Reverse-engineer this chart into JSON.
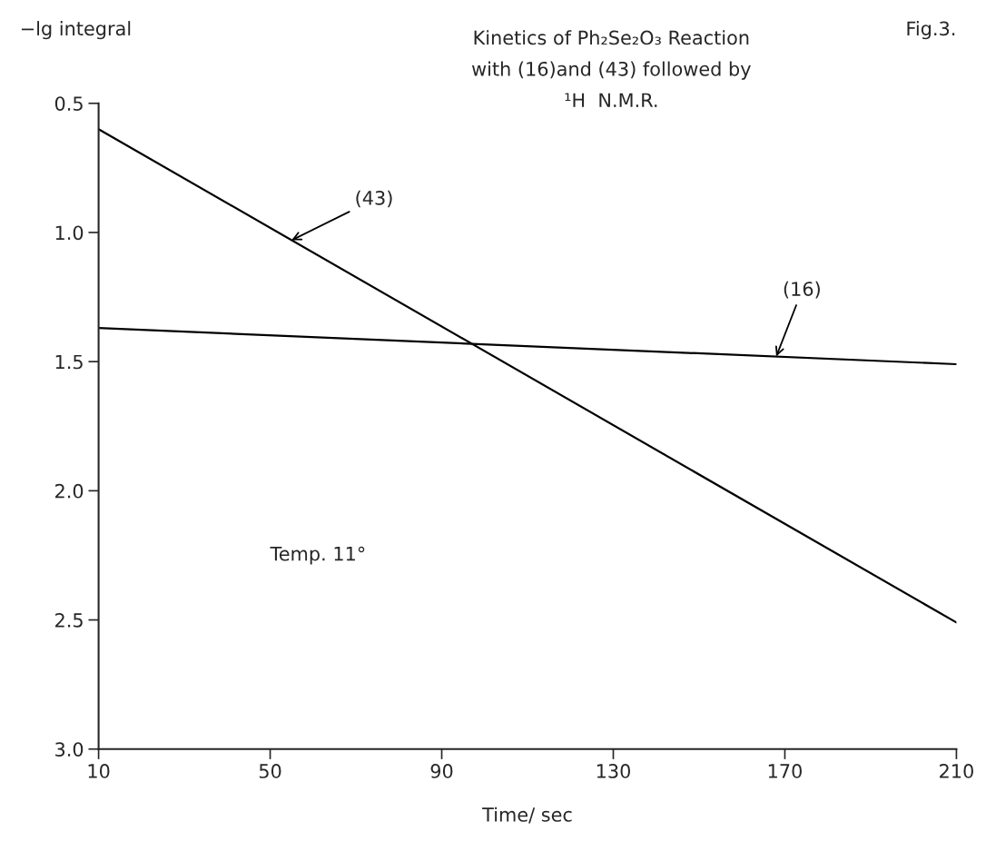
{
  "chart_data": {
    "type": "line",
    "title": "Kinetics of Ph₂Se₂O₃ Reaction\nwith (16)and (43) followed by\n¹H  N.M.R.",
    "xlabel": "Time/ sec",
    "ylabel": "−lg integral",
    "x": [
      10,
      210
    ],
    "series": [
      {
        "color": "#000000",
        "values": [
          0.6,
          2.51
        ]
      },
      {
        "color": "#000000",
        "values": [
          1.37,
          1.51
        ]
      }
    ],
    "xlim": [
      10,
      210
    ],
    "xticks": [
      10,
      50,
      90,
      130,
      170,
      210
    ],
    "ylim": [
      3.0,
      0.5
    ],
    "yticks": [
      {
        "value": 0.5,
        "label": "0.5"
      },
      {
        "value": 1.0,
        "label": "1.0"
      },
      {
        "value": 1.5,
        "label": "1.5"
      },
      {
        "value": 2.0,
        "label": "2.0"
      },
      {
        "value": 2.5,
        "label": "2.5"
      },
      {
        "value": 3.0,
        "label": "3.0"
      }
    ],
    "annotations": [
      {
        "text": "(43)",
        "x": 55,
        "y": 1.03
      },
      {
        "text": "(16)",
        "x": 168,
        "y": 1.48
      },
      "Temp. 11°",
      "Fig.3."
    ],
    "grid": false,
    "legend": false,
    "marker": "none",
    "line_style": "solid"
  }
}
